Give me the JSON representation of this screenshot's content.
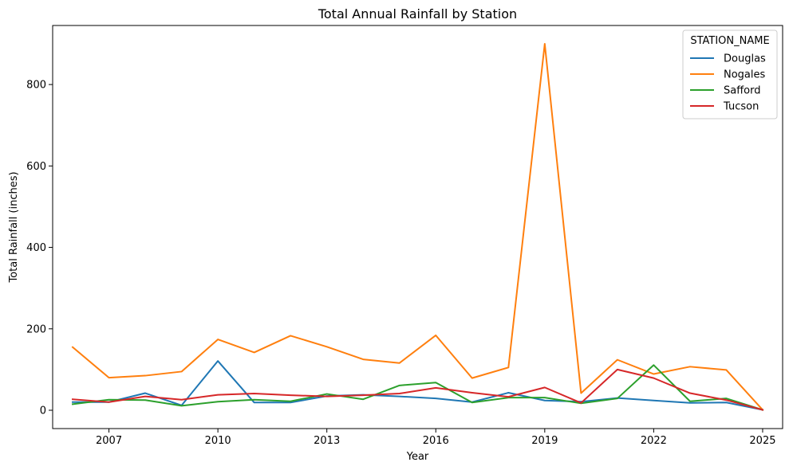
{
  "chart_data": {
    "type": "line",
    "title": "Total Annual Rainfall by Station",
    "xlabel": "Year",
    "ylabel": "Total Rainfall (inches)",
    "x": [
      2006,
      2007,
      2008,
      2009,
      2010,
      2011,
      2012,
      2013,
      2014,
      2015,
      2016,
      2017,
      2018,
      2019,
      2020,
      2021,
      2022,
      2023,
      2024,
      2025
    ],
    "xlim": [
      2005.45,
      2025.55
    ],
    "ylim": [
      -45,
      945
    ],
    "xticks": [
      2007,
      2010,
      2013,
      2016,
      2019,
      2022,
      2025
    ],
    "yticks": [
      0,
      200,
      400,
      600,
      800
    ],
    "grid": false,
    "legend": {
      "title": "STATION_NAME",
      "placement": "top-right"
    },
    "series": [
      {
        "name": "Douglas",
        "color": "#1f77b4",
        "values": [
          20,
          20,
          42,
          12,
          121,
          19,
          19,
          35,
          38,
          34,
          29,
          20,
          43,
          24,
          21,
          30,
          24,
          18,
          19,
          1
        ]
      },
      {
        "name": "Nogales",
        "color": "#ff7f0e",
        "values": [
          155,
          80,
          85,
          95,
          174,
          142,
          183,
          156,
          125,
          116,
          184,
          79,
          105,
          900,
          42,
          124,
          89,
          107,
          99,
          1
        ]
      },
      {
        "name": "Safford",
        "color": "#2ca02c",
        "values": [
          15,
          26,
          25,
          11,
          21,
          26,
          22,
          40,
          27,
          61,
          68,
          19,
          31,
          31,
          17,
          29,
          111,
          22,
          29,
          1
        ]
      },
      {
        "name": "Tucson",
        "color": "#d62728",
        "values": [
          27,
          20,
          34,
          26,
          38,
          41,
          37,
          34,
          37,
          41,
          55,
          43,
          33,
          56,
          18,
          100,
          79,
          42,
          25,
          1
        ]
      }
    ]
  }
}
